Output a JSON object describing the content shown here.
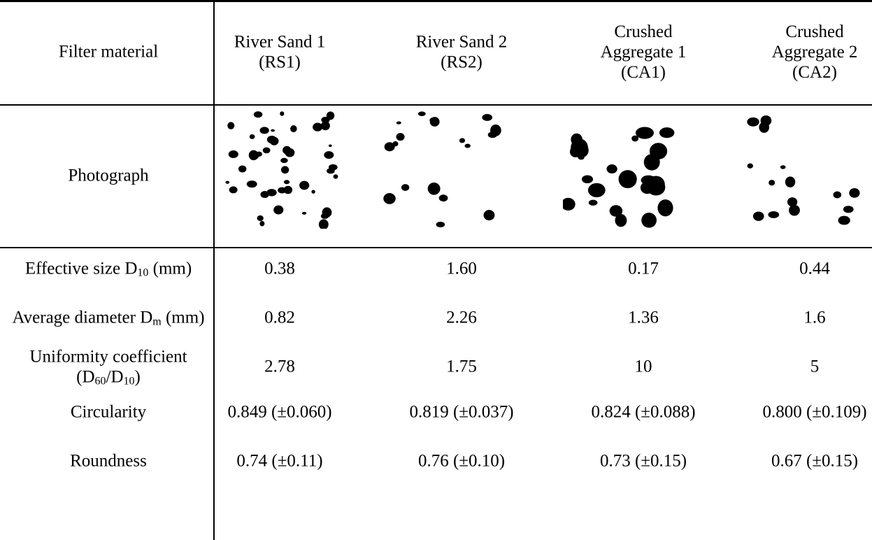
{
  "header": {
    "label": "Filter material",
    "columns": [
      "River Sand 1 (RS1)",
      "River Sand 2 (RS2)",
      "Crushed Aggregate 1 (CA1)",
      "Crushed Aggregate 2 (CA2)"
    ]
  },
  "photo_label": "Photograph",
  "rows": [
    {
      "label": [
        {
          "text": "Effective size D"
        },
        {
          "sub": "10"
        },
        {
          "text": " (mm)"
        }
      ],
      "values": [
        "0.38",
        "1.60",
        "0.17",
        "0.44"
      ]
    },
    {
      "label": [
        {
          "text": "Average diameter D"
        },
        {
          "sub": "m"
        },
        {
          "text": " (mm)"
        }
      ],
      "values": [
        "0.82",
        "2.26",
        "1.36",
        "1.6"
      ]
    },
    {
      "label": [
        {
          "text": "Uniformity coefficient (D"
        },
        {
          "sub": "60"
        },
        {
          "text": "/D"
        },
        {
          "sub": "10"
        },
        {
          "text": ")"
        }
      ],
      "values": [
        "2.78",
        "1.75",
        "10",
        "5"
      ]
    },
    {
      "label": [
        {
          "text": "Circularity"
        }
      ],
      "values": [
        "0.849 (±0.060)",
        "0.819 (±0.037)",
        "0.824 (±0.088)",
        "0.800 (±0.109)"
      ]
    },
    {
      "label": [
        {
          "text": "Roundness"
        }
      ],
      "values": [
        "0.74 (±0.11)",
        "0.76 (±0.10)",
        "0.73 (±0.15)",
        "0.67 (±0.15)"
      ]
    }
  ]
}
